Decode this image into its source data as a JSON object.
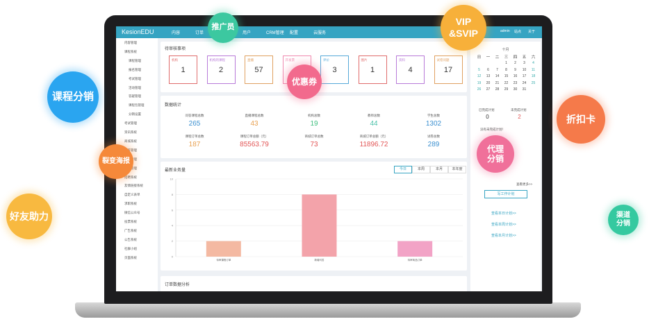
{
  "bubbles": [
    [
      "推广员"
    ],
    [
      "VIP",
      "&SVIP"
    ],
    [
      "课程分销"
    ],
    [
      "优惠券"
    ],
    [
      "折扣卡"
    ],
    [
      "裂变海报"
    ],
    [
      "代理",
      "分销"
    ],
    [
      "好友助力"
    ],
    [
      "渠道",
      "分销"
    ]
  ],
  "app": {
    "logo": "KesionEDU",
    "nav": [
      "内容",
      "订单",
      "互动",
      "用户",
      "CRM管理",
      "配置",
      "云服务"
    ],
    "nav_right": [
      "admin",
      "站点",
      "关于"
    ],
    "sidebar": [
      "内容管理",
      "课程系统",
      "课程管理",
      "报名管理",
      "考试管理",
      "活动管理",
      "答疑管理",
      "课程包管理",
      "分销设置",
      "考试管理",
      "资讯系统",
      "商城系统",
      "问答管理",
      "题库管理",
      "班级管理",
      "招聘系统",
      "友情链接系统",
      "自定义表单",
      "求职系统",
      "微信公众号",
      "投票系统",
      "广告系统",
      "公告系统",
      "社群小组",
      "页面系统"
    ],
    "pending": {
      "title": "待审核事项",
      "items": [
        {
          "label": "机构",
          "value": 1
        },
        {
          "label": "机构的课程",
          "value": 2
        },
        {
          "label": "直播",
          "value": 57
        },
        {
          "label": "开发票"
        },
        {
          "label": "评价",
          "value": 3
        },
        {
          "label": "图片",
          "value": 1
        },
        {
          "label": "资料",
          "value": 4
        },
        {
          "label": "试卷问题",
          "value": 17
        }
      ]
    },
    "stats": {
      "title": "数据统计",
      "items": [
        {
          "label": "问答课程总数",
          "value": 265
        },
        {
          "label": "直播课程总数",
          "value": 43
        },
        {
          "label": "机构总数",
          "value": 19
        },
        {
          "label": "教师总数",
          "value": 44
        },
        {
          "label": "学生总数",
          "value": 1302
        },
        {
          "label": "课程订单总数",
          "value": 187
        },
        {
          "label": "课程订单总额（元）",
          "value": 85563.79
        },
        {
          "label": "商城订单总数",
          "value": 73
        },
        {
          "label": "商城订单总额（元）",
          "value": 11896.72
        },
        {
          "label": "试卷总数",
          "value": 289
        }
      ]
    },
    "chart": {
      "title": "最新业务量",
      "tabs": [
        "今日",
        "本周",
        "本月",
        "本年度"
      ],
      "categories": [
        "待审课程订单",
        "新增问答",
        "待审商品订单"
      ],
      "values": [
        2,
        8,
        2
      ],
      "colors": [
        "#f4b9a2",
        "#f3a3aa",
        "#f2a3c6"
      ],
      "ylim": [
        0,
        10
      ],
      "yticks": [
        0,
        2,
        4,
        6,
        8,
        10
      ]
    },
    "orders_title": "订单数据分析",
    "calendar": {
      "month": "十月",
      "weekdays": [
        "日",
        "一",
        "二",
        "三",
        "四",
        "五",
        "六"
      ],
      "days": [
        1,
        2,
        3,
        4,
        5,
        6,
        7,
        8,
        9,
        10,
        11,
        12,
        13,
        14,
        15,
        16,
        17,
        18,
        19,
        20,
        21,
        22,
        23,
        24,
        25,
        26,
        27,
        28,
        29,
        30,
        31
      ]
    },
    "plans": {
      "done_label": "已完成计划",
      "done": 0,
      "todo_label": "未完成计划",
      "todo": 2,
      "empty": "没有未完成计划！",
      "more": "查看更多>>",
      "write": "写工作计划",
      "links": [
        "查看本日计划>>",
        "查看本周计划>>",
        "查看本月计划>>"
      ]
    }
  }
}
